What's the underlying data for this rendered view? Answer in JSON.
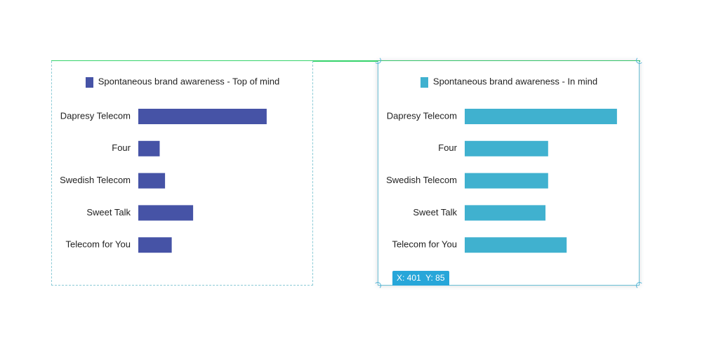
{
  "chart_data": [
    {
      "type": "bar",
      "orientation": "horizontal",
      "legend": "Spontaneous brand awareness - Top of mind",
      "color": "#4653a6",
      "categories": [
        "Dapresy Telecom",
        "Four",
        "Swedish Telecom",
        "Sweet Talk",
        "Telecom for You"
      ],
      "values": [
        48,
        8,
        10,
        20.5,
        12.5
      ],
      "xlim": [
        0,
        50
      ],
      "grid": false,
      "legend_position": "top"
    },
    {
      "type": "bar",
      "orientation": "horizontal",
      "legend": "Spontaneous brand awareness - In mind",
      "color": "#40b1cf",
      "categories": [
        "Dapresy Telecom",
        "Four",
        "Swedish Telecom",
        "Sweet Talk",
        "Telecom for You"
      ],
      "values": [
        57.5,
        31.5,
        31.5,
        30.5,
        38.5
      ],
      "xlim": [
        0,
        60
      ],
      "grid": false,
      "legend_position": "top"
    }
  ],
  "selection_badge": {
    "x_label": "X: 401",
    "y_label": "Y: 85"
  }
}
